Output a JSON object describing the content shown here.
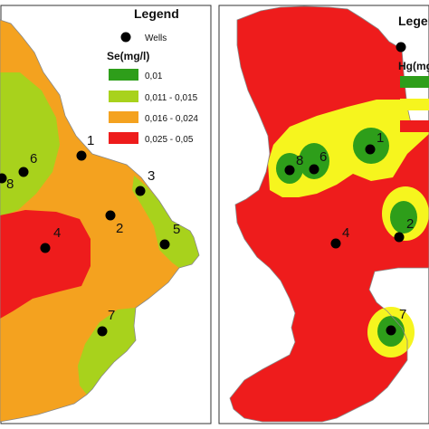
{
  "colors": {
    "green": "#2e9e1a",
    "lightgreen": "#a8d21c",
    "orange": "#f4a21f",
    "red": "#ee1c1c",
    "yellow": "#f6f51e",
    "dot": "#000000",
    "frame": "#333333"
  },
  "left_map": {
    "legend": {
      "title": "Legend",
      "wells_label": "Wells",
      "param_title": "Se(mg/l)",
      "classes": [
        {
          "label": "0,01",
          "color": "#2e9e1a"
        },
        {
          "label": "0,011 - 0,015",
          "color": "#a8d21c"
        },
        {
          "label": "0,016 - 0,024",
          "color": "#f4a21f"
        },
        {
          "label": "0,025 - 0,05",
          "color": "#ee1c1c"
        }
      ]
    },
    "wells": [
      "1",
      "2",
      "3",
      "4",
      "5",
      "6",
      "7",
      "8"
    ]
  },
  "right_map": {
    "legend": {
      "title": "Legend",
      "param_title": "Hg(mg/l)",
      "classes": [
        {
          "label": "",
          "color": "#2e9e1a"
        },
        {
          "label": "",
          "color": "#f6f51e"
        },
        {
          "label": "",
          "color": "#ee1c1c"
        }
      ]
    },
    "wells": [
      "1",
      "2",
      "4",
      "6",
      "7",
      "8"
    ]
  }
}
